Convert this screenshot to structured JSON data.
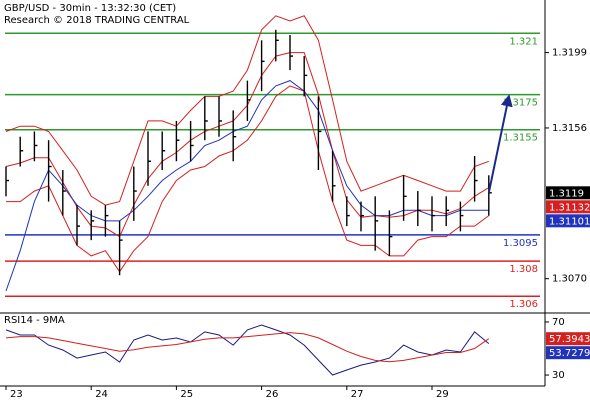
{
  "chart_data": [
    {
      "type": "ohlc",
      "title": "GBP/USD - 30min - 13:32:30 (CET)",
      "subtitle": "Research © 2018 TRADING CENTRAL",
      "categories": [
        "23",
        null,
        null,
        null,
        null,
        null,
        "24",
        null,
        null,
        null,
        null,
        null,
        "25",
        null,
        null,
        null,
        null,
        null,
        "26",
        null,
        null,
        null,
        null,
        null,
        "27",
        null,
        null,
        null,
        null,
        null,
        "29",
        null,
        null,
        null,
        null
      ],
      "high": [
        1.3134,
        1.3151,
        1.3154,
        1.3149,
        1.3132,
        1.3112,
        1.3109,
        1.3112,
        1.3103,
        1.3134,
        1.3154,
        1.3154,
        1.316,
        1.316,
        1.3174,
        1.3174,
        1.3166,
        1.3183,
        1.3206,
        1.3212,
        1.3209,
        1.3197,
        1.3174,
        1.3143,
        1.3117,
        1.3114,
        1.3117,
        1.3109,
        1.3129,
        1.312,
        1.3117,
        1.3117,
        1.3114,
        1.314,
        1.3129
      ],
      "low": [
        1.3117,
        1.3134,
        1.3137,
        1.3114,
        1.3106,
        1.3089,
        1.3092,
        1.3094,
        1.3072,
        1.3103,
        1.3123,
        1.3132,
        1.3137,
        1.3137,
        1.3149,
        1.3151,
        1.3137,
        1.316,
        1.3177,
        1.3194,
        1.3189,
        1.3174,
        1.3132,
        1.3114,
        1.31,
        1.3097,
        1.3086,
        1.3083,
        1.3103,
        1.31,
        1.3097,
        1.31,
        1.3097,
        1.3114,
        1.3106
      ],
      "close": [
        1.3126,
        1.3143,
        1.3146,
        1.3134,
        1.312,
        1.31,
        1.3103,
        1.3106,
        1.3092,
        1.312,
        1.3137,
        1.3143,
        1.3149,
        1.3146,
        1.316,
        1.316,
        1.3151,
        1.3172,
        1.3194,
        1.3206,
        1.3197,
        1.3186,
        1.3154,
        1.3123,
        1.3106,
        1.3106,
        1.3103,
        1.3094,
        1.3117,
        1.3109,
        1.3106,
        1.3109,
        1.3106,
        1.3126,
        1.3119
      ],
      "color": "#000000",
      "series": [
        {
          "color": "#d42020",
          "values": [
            1.3154,
            1.3157,
            1.3157,
            1.3154,
            1.3143,
            1.3132,
            1.3117,
            1.3112,
            1.3114,
            1.3137,
            1.316,
            1.316,
            1.3157,
            1.3166,
            1.3174,
            1.3174,
            1.3177,
            1.3189,
            1.3212,
            1.322,
            1.3217,
            1.322,
            1.3206,
            1.3172,
            1.3137,
            1.312,
            1.3123,
            1.3126,
            1.3129,
            1.3126,
            1.3123,
            1.312,
            1.312,
            1.3134,
            1.3137
          ]
        },
        {
          "color": "#d42020",
          "values": [
            1.3134,
            1.3136,
            1.3139,
            1.3139,
            1.3125,
            1.3111,
            1.31,
            1.3099,
            1.3094,
            1.3112,
            1.3127,
            1.3137,
            1.3142,
            1.3149,
            1.3154,
            1.3157,
            1.316,
            1.3169,
            1.3186,
            1.3197,
            1.3199,
            1.3199,
            1.3175,
            1.3143,
            1.3115,
            1.3105,
            1.3106,
            1.3105,
            1.3106,
            1.3109,
            1.3109,
            1.3107,
            1.311,
            1.3117,
            1.3122
          ]
        },
        {
          "color": "#d42020",
          "values": [
            1.3114,
            1.3114,
            1.312,
            1.3123,
            1.3106,
            1.3089,
            1.3083,
            1.3086,
            1.3074,
            1.3086,
            1.3094,
            1.3114,
            1.3126,
            1.3132,
            1.3134,
            1.314,
            1.3143,
            1.3149,
            1.316,
            1.3174,
            1.318,
            1.3177,
            1.3143,
            1.3114,
            1.3092,
            1.3089,
            1.3089,
            1.3083,
            1.3083,
            1.3092,
            1.3094,
            1.3094,
            1.31,
            1.31,
            1.3106
          ]
        },
        {
          "color": "#2233bb",
          "values": [
            1.3063,
            1.3086,
            1.3114,
            1.3132,
            1.3123,
            1.3112,
            1.3106,
            1.3103,
            1.3103,
            1.3109,
            1.3117,
            1.3126,
            1.3132,
            1.3137,
            1.3146,
            1.3149,
            1.3154,
            1.3157,
            1.3172,
            1.318,
            1.3183,
            1.3177,
            1.3166,
            1.3143,
            1.3123,
            1.3112,
            1.3106,
            1.3106,
            1.3109,
            1.3109,
            1.3106,
            1.3106,
            1.3109,
            1.3109,
            1.3109
          ]
        }
      ],
      "levels": [
        {
          "value": 1.321,
          "color": "#2e9a2e"
        },
        {
          "value": 1.3175,
          "color": "#2e9a2e"
        },
        {
          "value": 1.3155,
          "color": "#2e9a2e"
        },
        {
          "value": 1.3095,
          "color": "#1f35c8"
        },
        {
          "value": 1.308,
          "color": "#e02020"
        },
        {
          "value": 1.306,
          "color": "#e02020"
        }
      ],
      "projection_color": "#1a2a8a",
      "ylim": [
        1.3051,
        1.3229
      ],
      "yticks": [
        1.3199,
        1.3156,
        {
          "value": 1.307,
          "label": "1.3070"
        }
      ],
      "last_labels": [
        {
          "value": 1.3119,
          "color": "#000000"
        },
        {
          "value": 1.31132,
          "color": "#d42020"
        },
        {
          "value": 1.31101,
          "color": "#2233bb"
        }
      ]
    },
    {
      "type": "line",
      "title": "RSI14 - 9MA",
      "series": [
        {
          "color": "#1a1a80",
          "values": [
            64.0,
            60.2,
            60.2,
            52.6,
            48.9,
            42.8,
            45.1,
            47.4,
            39.8,
            56.4,
            60.2,
            56.4,
            57.9,
            54.9,
            62.5,
            60.2,
            52.6,
            64.0,
            67.7,
            64.0,
            60.2,
            52.6,
            41.3,
            30.0,
            33.8,
            37.5,
            39.8,
            42.8,
            52.6,
            47.4,
            45.1,
            48.9,
            47.4,
            62.5,
            53.7
          ]
        },
        {
          "color": "#d42020",
          "values": [
            58,
            59,
            59,
            58,
            56,
            54,
            52,
            50,
            48,
            49,
            51,
            52,
            53,
            55,
            57,
            58,
            58,
            59,
            60,
            61,
            62,
            61,
            58,
            53,
            48,
            44,
            41,
            40,
            41,
            43,
            45,
            47,
            47,
            50,
            57.4
          ]
        }
      ],
      "ylim": [
        22.5,
        76
      ],
      "yticks": [
        30,
        70
      ],
      "last_labels": [
        {
          "value": 57.3943,
          "color": "#d42020"
        },
        {
          "value": 53.7279,
          "color": "#2233bb"
        }
      ]
    }
  ]
}
